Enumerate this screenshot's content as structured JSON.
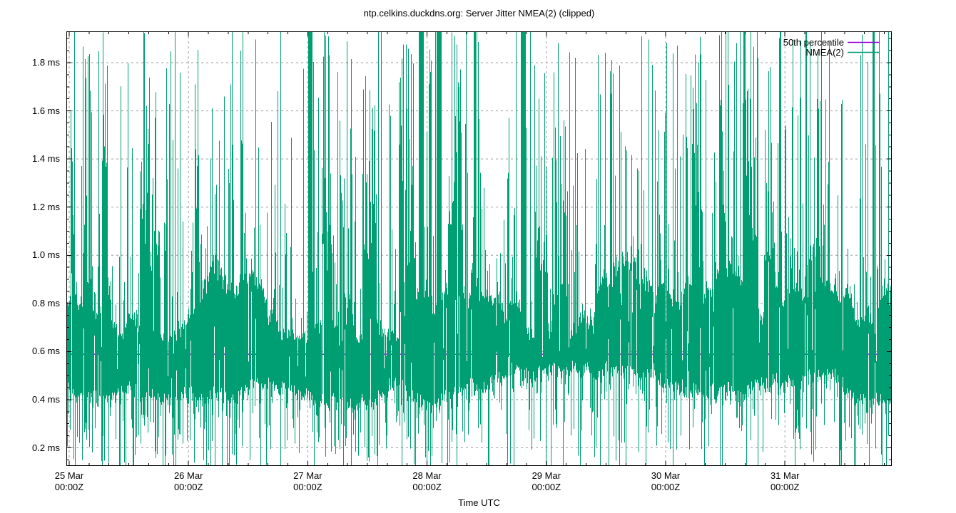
{
  "title": "ntp.celkins.duckdns.org: Server Jitter NMEA(2) (clipped)",
  "background_color": "#ffffff",
  "chart_data": {
    "type": "line",
    "title": "ntp.celkins.duckdns.org: Server Jitter NMEA(2) (clipped)",
    "xlabel": "Time UTC",
    "ylabel": "",
    "y_unit": "ms",
    "ylim": [
      0.1245,
      1.9302
    ],
    "grid": true,
    "grid_color": "#9c9c9c",
    "border_color": "#000000",
    "legend_position": "top-right-inside",
    "y_ticks": [
      0.2,
      0.4,
      0.6,
      0.8,
      1.0,
      1.2,
      1.4,
      1.6,
      1.8
    ],
    "y_tick_labels": [
      "0.2 ms",
      "0.4 ms",
      "0.6 ms",
      "0.8 ms",
      "1.0 ms",
      "1.2 ms",
      "1.4 ms",
      "1.6 ms",
      "1.8 ms"
    ],
    "y_minor_step": 0.05,
    "x_ticks": [
      {
        "day": 0,
        "line1": "25 Mar",
        "line2": "00:00Z"
      },
      {
        "day": 1,
        "line1": "26 Mar",
        "line2": "00:00Z"
      },
      {
        "day": 2,
        "line1": "27 Mar",
        "line2": "00:00Z"
      },
      {
        "day": 3,
        "line1": "28 Mar",
        "line2": "00:00Z"
      },
      {
        "day": 4,
        "line1": "29 Mar",
        "line2": "00:00Z"
      },
      {
        "day": 5,
        "line1": "30 Mar",
        "line2": "00:00Z"
      },
      {
        "day": 6,
        "line1": "31 Mar",
        "line2": "00:00Z"
      }
    ],
    "x_minor_intervals_per_day": 6,
    "x_span_days": 6.9,
    "series": [
      {
        "name": "50th percentile",
        "type": "hline",
        "value_ms": 0.589,
        "color": "#9400D3"
      },
      {
        "name": "NMEA(2)",
        "type": "impulse-noise",
        "color": "#009E73",
        "summary": {
          "median_ms": 0.59,
          "dense_band_ms": [
            0.42,
            0.95
          ],
          "spike_range_ms": [
            0.125,
            1.93
          ],
          "clipped_top_ms": 1.93,
          "clipped_bottom_ms": 0.125,
          "description": "dense server-jitter impulse trace; bulk of samples 0.4-1.0 ms, frequent needle spikes to both plot edges (clipped)"
        },
        "synth": {
          "seed": 20240325,
          "low_walk": [
            0.4,
            0.56
          ],
          "high_walk": [
            0.66,
            1.02
          ],
          "walk_step_low": 0.022,
          "walk_step_high": 0.07,
          "gap_prob": 0.1,
          "down_needle_prob": 0.42,
          "up_needle_prob": 0.45,
          "burst_up_needle_prob": 0.75,
          "clip_top_prob": 0.03,
          "clip_bottom_prob": 0.05,
          "burst_start_prob": 0.02,
          "solid_column_prob": 0.006
        }
      }
    ]
  }
}
